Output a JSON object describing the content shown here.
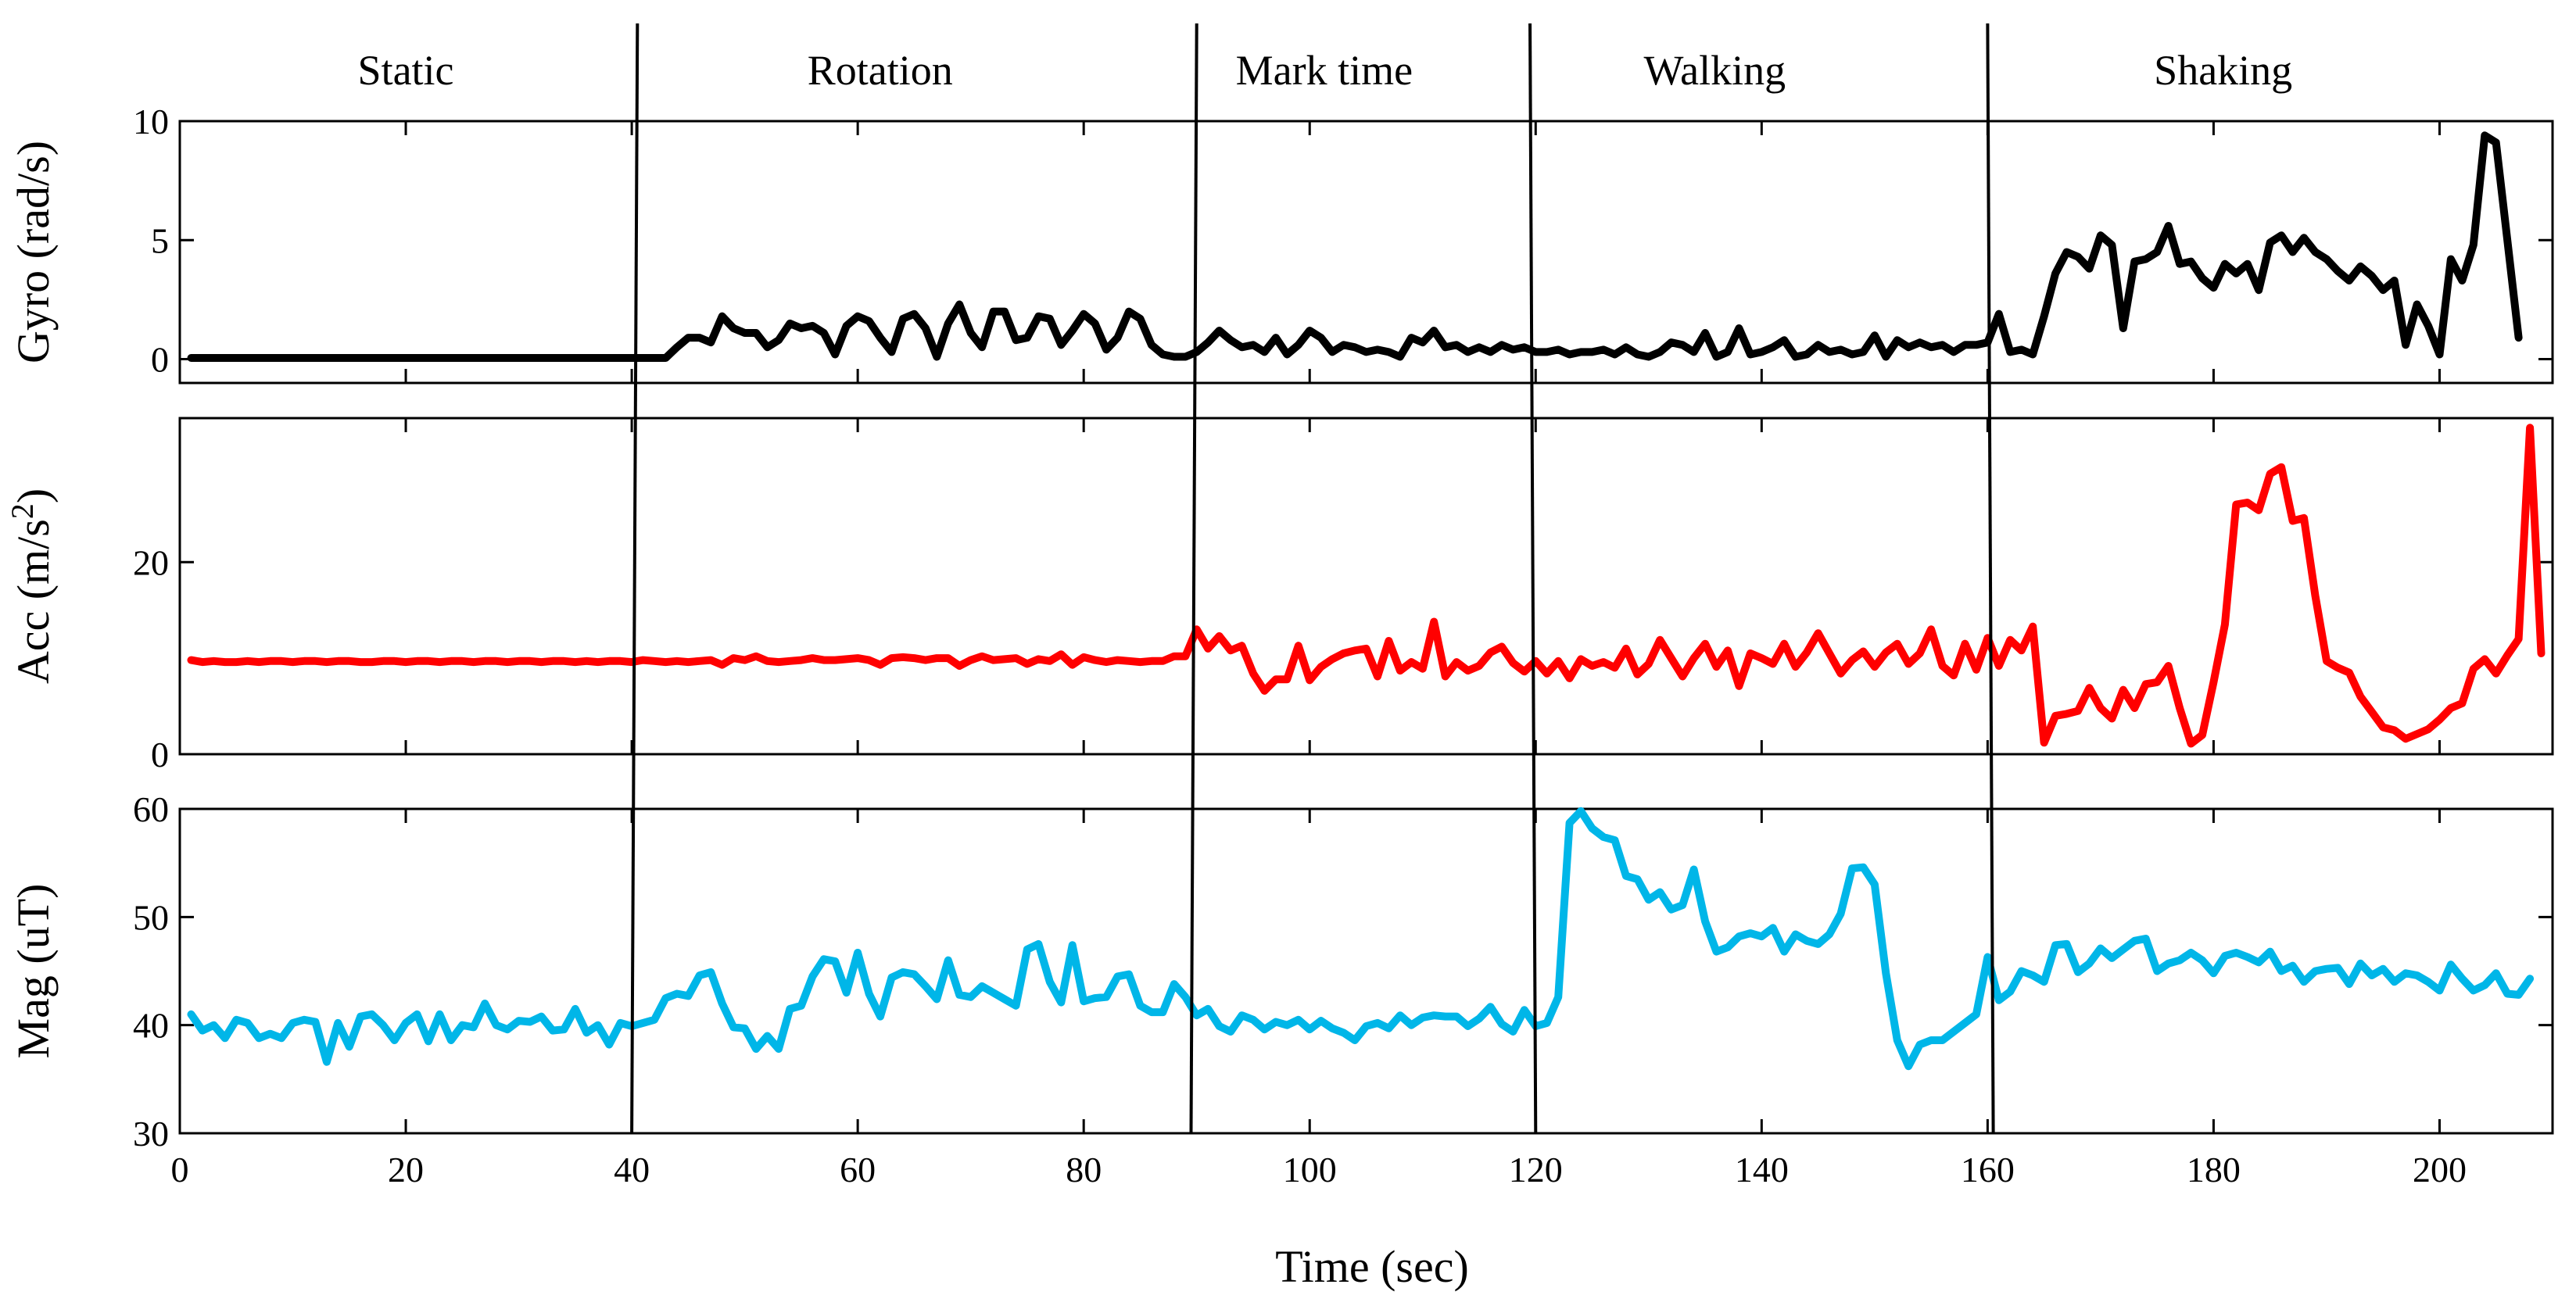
{
  "chart_data": {
    "type": "line",
    "xlabel": "Time (sec)",
    "xlim": [
      0,
      210
    ],
    "xticks": [
      0,
      20,
      40,
      60,
      80,
      100,
      120,
      140,
      160,
      180,
      200
    ],
    "phases": [
      {
        "label": "Static",
        "start": 0,
        "end": 40
      },
      {
        "label": "Rotation",
        "start": 40,
        "end": 89.5
      },
      {
        "label": "Mark time",
        "start": 89.5,
        "end": 120
      },
      {
        "label": "Walking",
        "start": 120,
        "end": 160
      },
      {
        "label": "Shaking",
        "start": 160,
        "end": 210
      }
    ],
    "dividers": [
      {
        "top": 40.5,
        "bottom": 40
      },
      {
        "top": 90,
        "bottom": 89.5
      },
      {
        "top": 119.5,
        "bottom": 120
      },
      {
        "top": 160,
        "bottom": 160.5
      }
    ],
    "panels": [
      {
        "name": "gyro",
        "ylabel": "Gyro (rad/s)",
        "ylim": [
          -1,
          10
        ],
        "yticks": [
          0,
          5,
          10
        ],
        "color": "#000000",
        "x_start": 1,
        "values": [
          0.05,
          0.05,
          0.05,
          0.05,
          0.05,
          0.05,
          0.05,
          0.05,
          0.05,
          0.05,
          0.05,
          0.05,
          0.05,
          0.05,
          0.05,
          0.05,
          0.05,
          0.05,
          0.05,
          0.05,
          0.05,
          0.05,
          0.05,
          0.05,
          0.05,
          0.05,
          0.05,
          0.05,
          0.05,
          0.05,
          0.05,
          0.05,
          0.05,
          0.05,
          0.05,
          0.05,
          0.05,
          0.05,
          0.05,
          0.05,
          0.05,
          0.05,
          0.05,
          0.5,
          0.9,
          0.9,
          0.7,
          1.8,
          1.3,
          1.1,
          1.1,
          0.5,
          0.8,
          1.5,
          1.3,
          1.4,
          1.1,
          0.2,
          1.4,
          1.8,
          1.6,
          0.9,
          0.3,
          1.7,
          1.9,
          1.3,
          0.1,
          1.5,
          2.3,
          1.1,
          0.5,
          2,
          2,
          0.8,
          0.9,
          1.8,
          1.7,
          0.6,
          1.2,
          1.9,
          1.5,
          0.4,
          0.9,
          2,
          1.7,
          0.6,
          0.2,
          0.1,
          0.1,
          0.3,
          0.7,
          1.2,
          0.8,
          0.5,
          0.6,
          0.3,
          0.9,
          0.2,
          0.6,
          1.2,
          0.9,
          0.3,
          0.6,
          0.5,
          0.3,
          0.4,
          0.3,
          0.1,
          0.9,
          0.7,
          1.2,
          0.5,
          0.6,
          0.3,
          0.5,
          0.3,
          0.6,
          0.4,
          0.5,
          0.3,
          0.3,
          0.4,
          0.2,
          0.3,
          0.3,
          0.4,
          0.2,
          0.5,
          0.2,
          0.1,
          0.3,
          0.7,
          0.6,
          0.3,
          1.1,
          0.1,
          0.3,
          1.3,
          0.2,
          0.3,
          0.5,
          0.8,
          0.1,
          0.2,
          0.6,
          0.3,
          0.4,
          0.2,
          0.3,
          1,
          0.1,
          0.8,
          0.5,
          0.7,
          0.5,
          0.6,
          0.3,
          0.6,
          0.6,
          0.7,
          1.9,
          0.3,
          0.4,
          0.2,
          1.8,
          3.6,
          4.5,
          4.3,
          3.8,
          5.2,
          4.8,
          1.3,
          4.1,
          4.2,
          4.5,
          5.6,
          4,
          4.1,
          3.4,
          3,
          4,
          3.6,
          4,
          2.9,
          4.9,
          5.2,
          4.5,
          5.1,
          4.5,
          4.2,
          3.7,
          3.3,
          3.9,
          3.5,
          2.9,
          3.3,
          0.6,
          2.3,
          1.4,
          0.2,
          4.2,
          3.3,
          4.8,
          9.4,
          9.1,
          5,
          0.9
        ]
      },
      {
        "name": "acc",
        "ylabel": "Acc (m/s2)",
        "ylabel_main": "Acc (m/s",
        "ylabel_sup": "2",
        "ylabel_end": ")",
        "ylim": [
          0,
          35
        ],
        "yticks": [
          0,
          20
        ],
        "color": "#ff0000",
        "x_start": 1,
        "values": [
          9.8,
          9.6,
          9.7,
          9.6,
          9.6,
          9.7,
          9.6,
          9.7,
          9.7,
          9.6,
          9.7,
          9.7,
          9.6,
          9.7,
          9.7,
          9.6,
          9.6,
          9.7,
          9.7,
          9.6,
          9.7,
          9.7,
          9.6,
          9.7,
          9.7,
          9.6,
          9.7,
          9.7,
          9.6,
          9.7,
          9.7,
          9.6,
          9.7,
          9.7,
          9.6,
          9.7,
          9.6,
          9.7,
          9.7,
          9.6,
          9.8,
          9.7,
          9.6,
          9.7,
          9.6,
          9.7,
          9.8,
          9.3,
          10,
          9.8,
          10.2,
          9.7,
          9.6,
          9.7,
          9.8,
          10,
          9.8,
          9.8,
          9.9,
          10,
          9.8,
          9.3,
          10,
          10.1,
          10,
          9.8,
          10,
          10,
          9.2,
          9.8,
          10.2,
          9.8,
          9.9,
          10,
          9.4,
          9.9,
          9.7,
          10.4,
          9.3,
          10.1,
          9.8,
          9.6,
          9.8,
          9.7,
          9.6,
          9.7,
          9.7,
          10.2,
          10.2,
          13,
          11,
          12.3,
          10.8,
          11.3,
          8.4,
          6.6,
          7.8,
          7.8,
          11.3,
          7.7,
          9.1,
          9.9,
          10.5,
          10.8,
          11,
          8.1,
          11.8,
          8.7,
          9.6,
          8.9,
          13.8,
          8.1,
          9.6,
          8.7,
          9.2,
          10.6,
          11.2,
          9.5,
          8.6,
          9.7,
          8.4,
          9.7,
          7.9,
          9.9,
          9.2,
          9.6,
          9,
          11,
          8.3,
          9.4,
          11.9,
          10,
          8.1,
          10,
          11.5,
          9.1,
          10.8,
          7.1,
          10.5,
          10,
          9.4,
          11.5,
          9.1,
          10.6,
          12.6,
          10.5,
          8.4,
          9.8,
          10.7,
          9.1,
          10.6,
          11.5,
          9.4,
          10.5,
          13,
          9.2,
          8.2,
          11.5,
          8.8,
          12.1,
          9.2,
          11.9,
          10.8,
          13.3,
          1.2,
          4,
          4.2,
          4.5,
          6.9,
          4.8,
          3.7,
          6.7,
          4.8,
          7.3,
          7.5,
          9.2,
          4.8,
          1.1,
          2,
          7.5,
          13.5,
          26,
          26.2,
          25.4,
          29.2,
          29.9,
          24.3,
          24.6,
          16.5,
          9.7,
          9,
          8.5,
          6,
          4.4,
          2.8,
          2.5,
          1.6,
          2.1,
          2.6,
          3.6,
          4.8,
          5.3,
          8.9,
          9.9,
          8.4,
          10.3,
          12,
          34,
          10.5
        ]
      },
      {
        "name": "mag",
        "ylabel": "Mag (uT)",
        "ylim": [
          30,
          60
        ],
        "yticks": [
          30,
          40,
          50,
          60
        ],
        "color": "#00b6e8",
        "x_start": 1,
        "values": [
          41,
          39.5,
          40,
          38.8,
          40.5,
          40.2,
          38.8,
          39.2,
          38.8,
          40.2,
          40.5,
          40.3,
          36.6,
          40.2,
          38,
          40.8,
          41,
          40,
          38.6,
          40.2,
          41,
          38.5,
          41,
          38.6,
          40,
          39.8,
          42,
          40,
          39.6,
          40.4,
          40.3,
          40.8,
          39.5,
          39.6,
          41.5,
          39.3,
          40,
          38.2,
          40.2,
          39.9,
          40.2,
          40.5,
          42.5,
          42.9,
          42.7,
          44.6,
          44.9,
          42,
          39.8,
          39.7,
          37.8,
          39,
          37.8,
          41.5,
          41.8,
          44.5,
          46.1,
          45.9,
          43,
          46.7,
          42.9,
          40.8,
          44.4,
          44.9,
          44.7,
          43.6,
          42.4,
          46,
          42.8,
          42.6,
          43.6,
          43,
          42.4,
          41.8,
          47,
          47.5,
          44,
          42.1,
          47.4,
          42.2,
          42.5,
          42.6,
          44.5,
          44.7,
          41.8,
          41.2,
          41.2,
          43.8,
          42.6,
          40.9,
          41.5,
          39.9,
          39.4,
          40.9,
          40.5,
          39.6,
          40.3,
          40,
          40.5,
          39.6,
          40.4,
          39.7,
          39.3,
          38.6,
          39.9,
          40.2,
          39.7,
          40.9,
          40,
          40.7,
          40.9,
          40.8,
          40.8,
          39.9,
          40.6,
          41.7,
          40.1,
          39.4,
          41.4,
          39.9,
          40.2,
          42.6,
          58.7,
          59.8,
          58.2,
          57.4,
          57.1,
          53.8,
          53.5,
          51.6,
          52.3,
          50.7,
          51.1,
          54.4,
          49.6,
          46.8,
          47.2,
          48.2,
          48.5,
          48.2,
          49,
          46.8,
          48.4,
          47.8,
          47.5,
          48.4,
          50.3,
          54.5,
          54.6,
          53,
          44.8,
          38.6,
          36.2,
          38.2,
          38.6,
          38.6,
          39.4,
          40.2,
          41,
          46.3,
          42.3,
          43.1,
          45,
          44.6,
          44,
          47.4,
          47.5,
          44.9,
          45.7,
          47.1,
          46.2,
          47,
          47.8,
          48,
          45,
          45.7,
          46,
          46.7,
          46,
          44.8,
          46.4,
          46.7,
          46.3,
          45.8,
          46.8,
          45,
          45.5,
          44,
          45,
          45.2,
          45.3,
          43.8,
          45.7,
          44.6,
          45.2,
          44,
          44.8,
          44.6,
          44,
          43.2,
          45.6,
          44.3,
          43.2,
          43.7,
          44.8,
          42.9,
          42.8,
          44.3
        ]
      }
    ]
  }
}
